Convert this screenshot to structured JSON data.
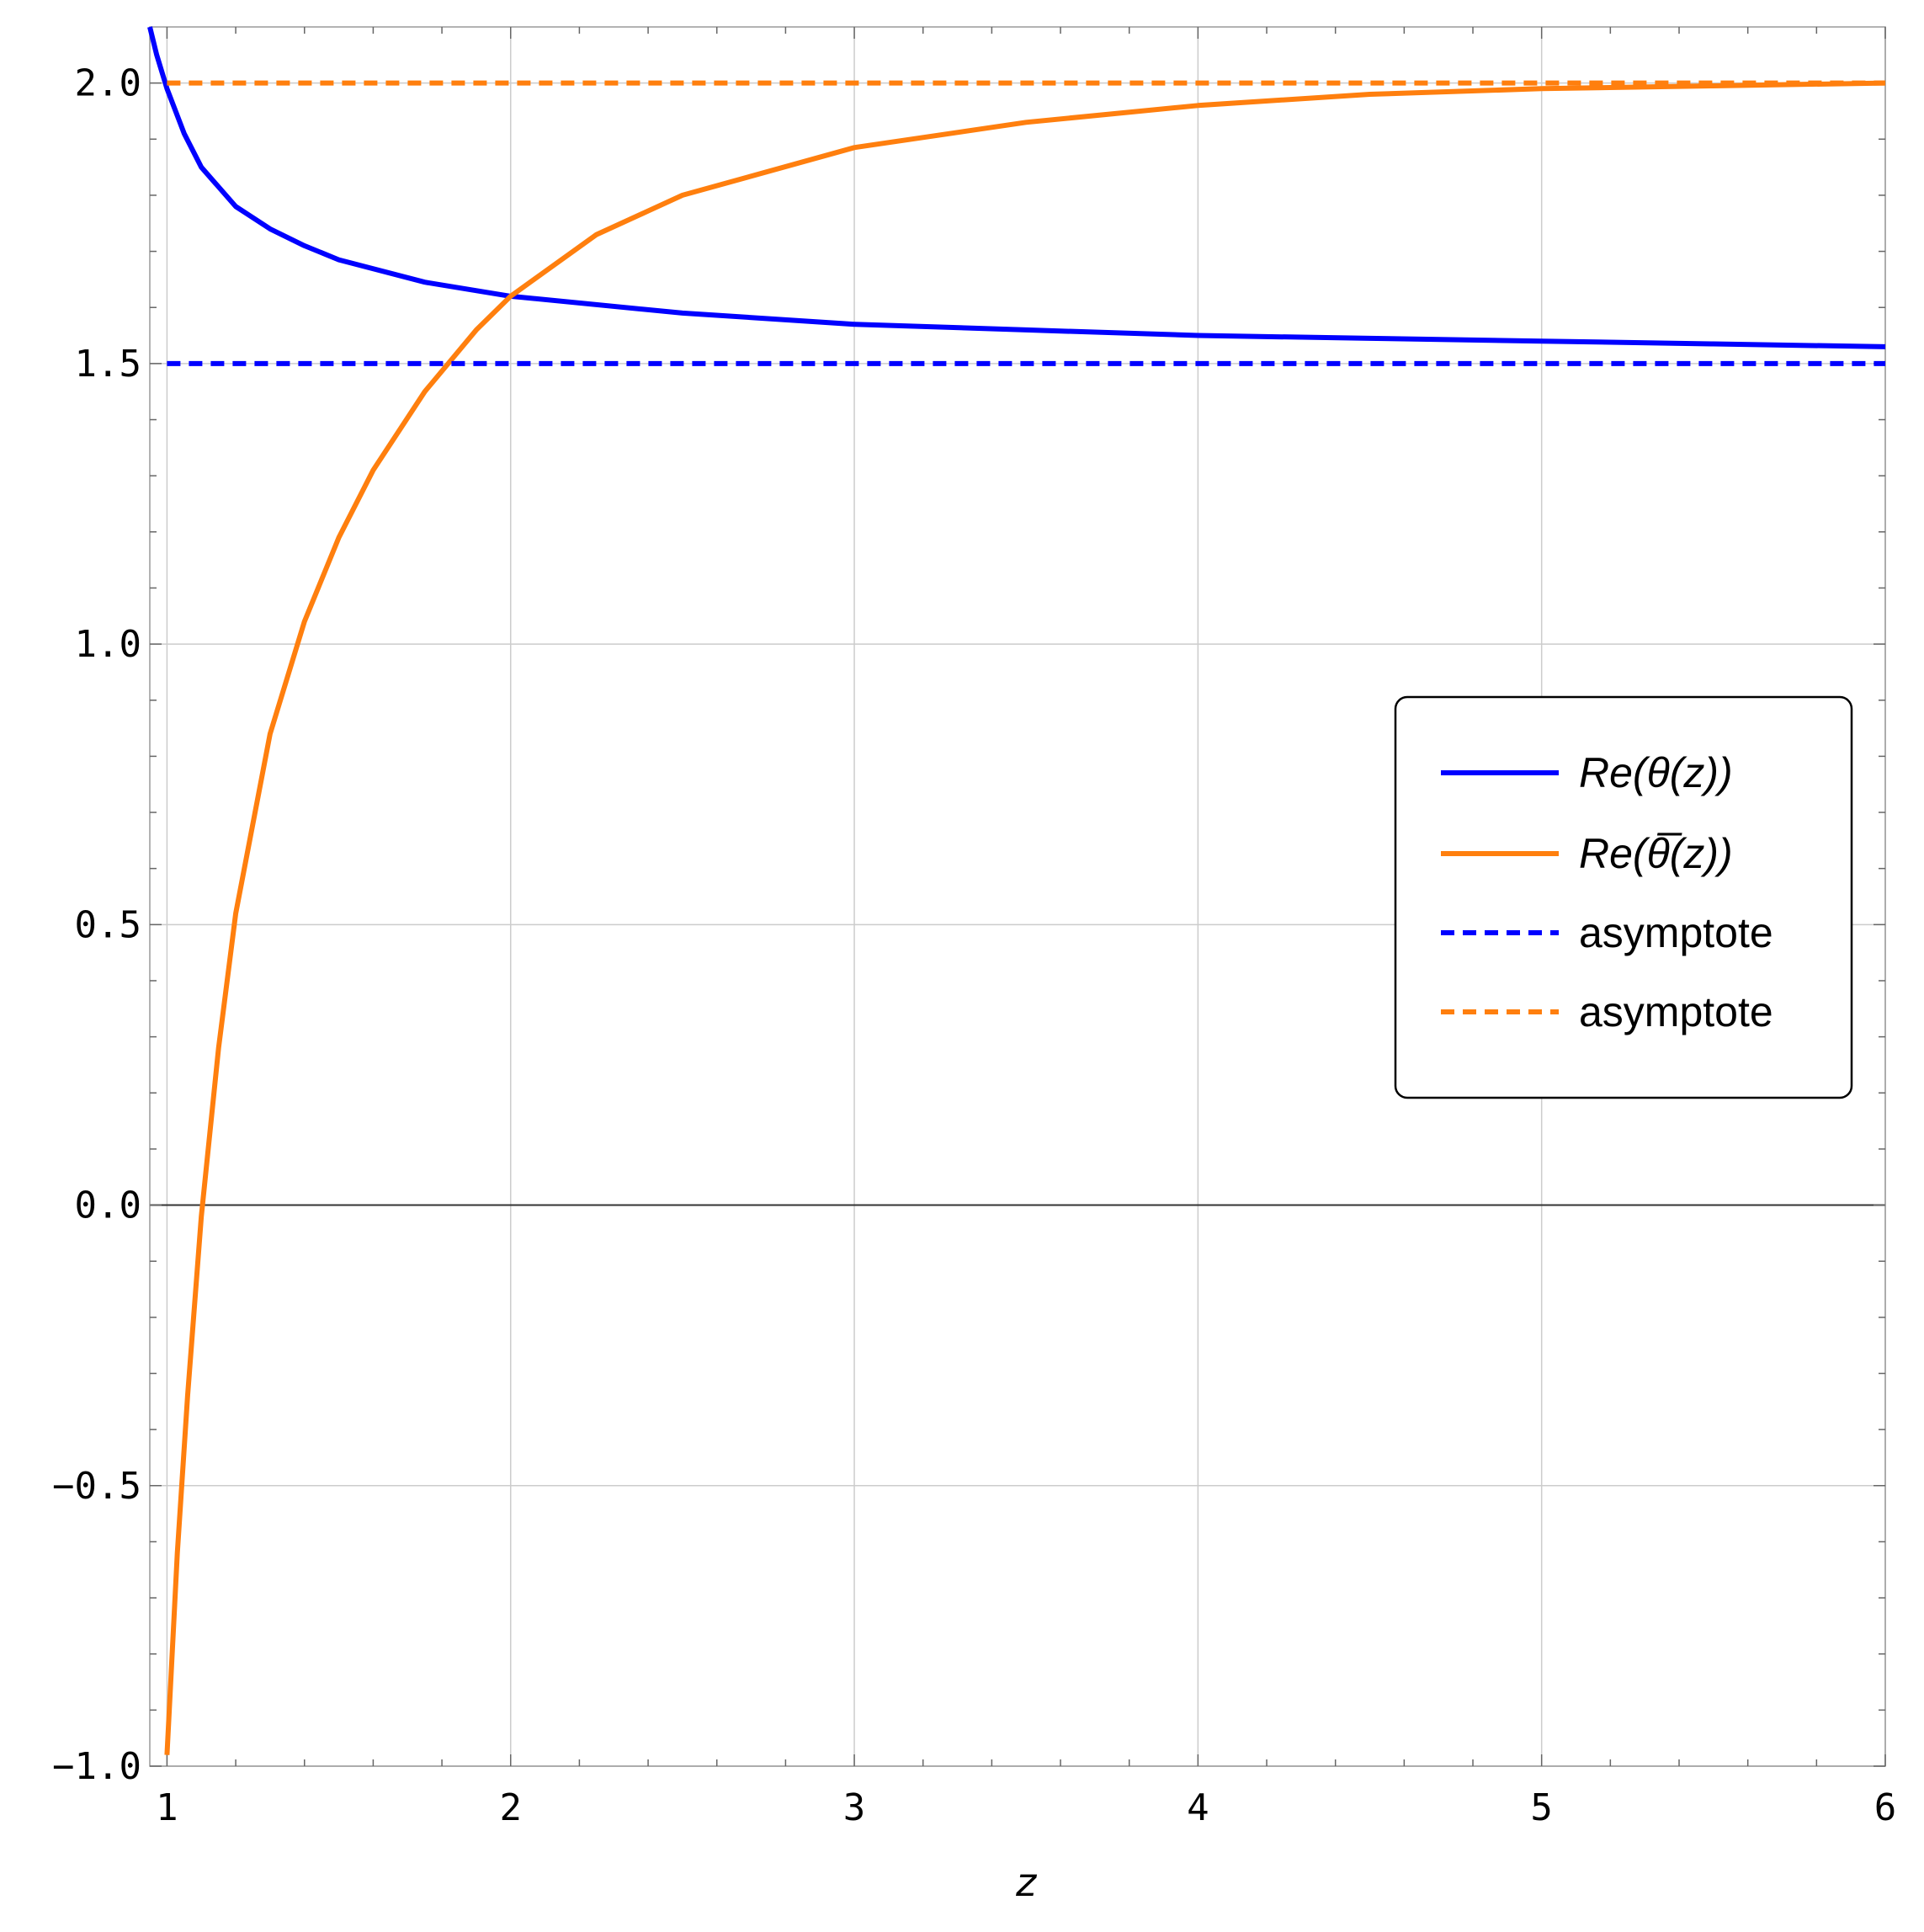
{
  "chart_data": {
    "type": "line",
    "title": "",
    "xlabel": "z",
    "ylabel": "",
    "xlim": [
      0.95,
      6
    ],
    "ylim": [
      -1.0,
      2.1
    ],
    "xticks": [
      1,
      2,
      3,
      4,
      5,
      6
    ],
    "xtick_labels": [
      "1",
      "2",
      "3",
      "4",
      "5",
      "6"
    ],
    "yticks": [
      -1.0,
      -0.5,
      0.0,
      0.5,
      1.0,
      1.5,
      2.0
    ],
    "ytick_labels": [
      "−1.0",
      "−0.5",
      "0.0",
      "0.5",
      "1.0",
      "1.5",
      "2.0"
    ],
    "grid": true,
    "legend_position": "right",
    "series": [
      {
        "name": "Re(θ(z))",
        "style": "solid",
        "color": "#0000ff",
        "x": [
          0.95,
          0.97,
          1.0,
          1.05,
          1.1,
          1.2,
          1.3,
          1.4,
          1.5,
          1.75,
          2.0,
          2.5,
          3.0,
          3.5,
          4.0,
          4.5,
          5.0,
          5.5,
          6.0
        ],
        "y": [
          2.1,
          2.05,
          1.99,
          1.91,
          1.85,
          1.78,
          1.74,
          1.71,
          1.685,
          1.645,
          1.62,
          1.59,
          1.57,
          1.56,
          1.55,
          1.545,
          1.54,
          1.535,
          1.53
        ]
      },
      {
        "name": "Re(θ̅(z))",
        "style": "solid",
        "color": "#ff7f0e",
        "x": [
          1.0,
          1.03,
          1.06,
          1.1,
          1.15,
          1.2,
          1.3,
          1.4,
          1.5,
          1.6,
          1.75,
          1.9,
          2.0,
          2.25,
          2.5,
          3.0,
          3.5,
          4.0,
          4.5,
          5.0,
          5.5,
          6.0
        ],
        "y": [
          -0.98,
          -0.62,
          -0.34,
          -0.02,
          0.28,
          0.52,
          0.84,
          1.04,
          1.19,
          1.31,
          1.45,
          1.56,
          1.62,
          1.73,
          1.8,
          1.885,
          1.93,
          1.96,
          1.98,
          1.99,
          1.995,
          2.0
        ]
      },
      {
        "name": "asymptote",
        "style": "dashed",
        "color": "#0000ff",
        "x": [
          1.0,
          6.0
        ],
        "y": [
          1.5,
          1.5
        ]
      },
      {
        "name": "asymptote",
        "style": "dashed",
        "color": "#ff7f0e",
        "x": [
          1.0,
          6.0
        ],
        "y": [
          2.0,
          2.0
        ]
      }
    ]
  }
}
